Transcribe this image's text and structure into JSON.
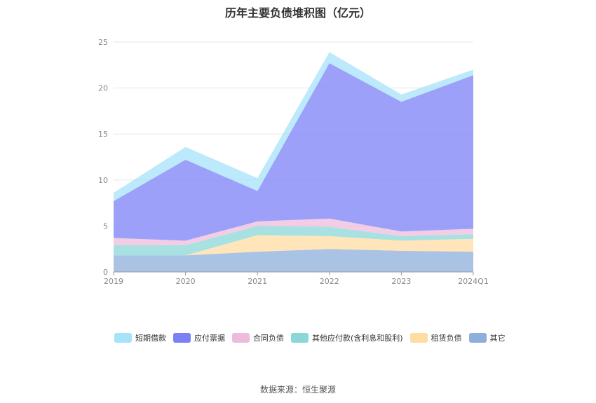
{
  "chart_data": {
    "type": "area",
    "stacked": true,
    "title": "历年主要负债堆积图（亿元）",
    "categories": [
      "2019",
      "2020",
      "2021",
      "2022",
      "2023",
      "2024Q1"
    ],
    "ylim": [
      0,
      25
    ],
    "yticks": [
      "0",
      "5",
      "10",
      "15",
      "20",
      "25"
    ],
    "grid": true,
    "legend_position": "bottom",
    "series": [
      {
        "name": "其它",
        "color": "#8eaedb",
        "values": [
          1.8,
          1.8,
          2.2,
          2.5,
          2.3,
          2.2
        ]
      },
      {
        "name": "租赁负债",
        "color": "#ffdca1",
        "values": [
          0.0,
          0.0,
          1.8,
          1.4,
          1.1,
          1.4
        ]
      },
      {
        "name": "其他应付款(含利息和股利)",
        "color": "#89d7d7",
        "values": [
          1.1,
          1.1,
          1.0,
          1.0,
          0.5,
          0.5
        ]
      },
      {
        "name": "合同负债",
        "color": "#edbcdc",
        "values": [
          0.8,
          0.5,
          0.5,
          0.9,
          0.5,
          0.6
        ]
      },
      {
        "name": "应付票据",
        "color": "#7b80f5",
        "values": [
          4.0,
          8.8,
          3.3,
          16.9,
          14.1,
          16.7
        ]
      },
      {
        "name": "短期借款",
        "color": "#a6e2fa",
        "values": [
          0.9,
          1.4,
          1.4,
          1.2,
          0.8,
          0.6
        ]
      }
    ],
    "legend_order": [
      "短期借款",
      "应付票据",
      "合同负债",
      "其他应付款(含利息和股利)",
      "租赁负债",
      "其它"
    ]
  },
  "source_note": "数据来源：恒生聚源"
}
